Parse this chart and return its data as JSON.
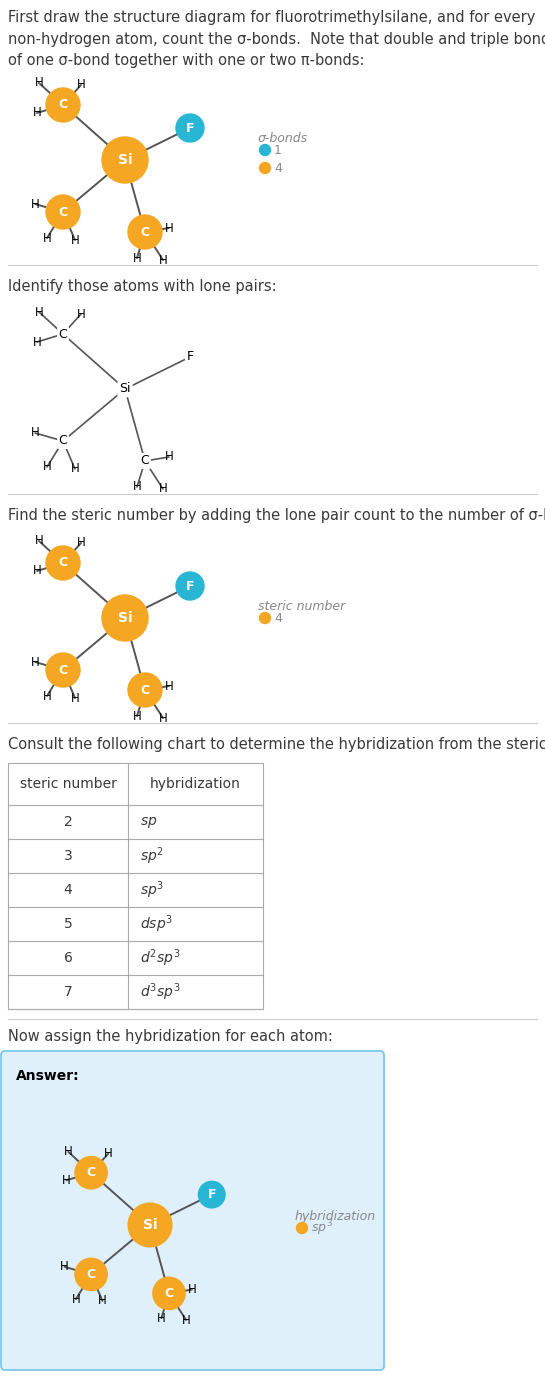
{
  "title_text1": "First draw the structure diagram for fluorotrimethylsilane, and for every\nnon-hydrogen atom, count the σ-bonds.  Note that double and triple bonds consist\nof one σ-bond together with one or two π-bonds:",
  "section2_text": "Identify those atoms with lone pairs:",
  "section3_text": "Find the steric number by adding the lone pair count to the number of σ-bonds:",
  "section4_text": "Consult the following chart to determine the hybridization from the steric number:",
  "section5_text": "Now assign the hybridization for each atom:",
  "answer_label": "Answer:",
  "table_headers": [
    "steric number",
    "hybridization"
  ],
  "table_rows": [
    "2",
    "3",
    "4",
    "5",
    "6",
    "7"
  ],
  "orange_color": "#F5A623",
  "cyan_color": "#29B6D4",
  "light_blue_bg": "#DFF0FA",
  "light_blue_border": "#7DC8E8",
  "text_color": "#888888",
  "dark_text": "#3A3A3A",
  "bond_color": "#555555",
  "legend1_sigma_label": "σ-bonds",
  "legend1_item1_color": "#29B6D4",
  "legend1_item2_color": "#F5A623",
  "legend2_label": "steric number",
  "legend2_item_color": "#F5A623",
  "legend3_label": "hybridization",
  "legend3_item_color": "#F5A623"
}
